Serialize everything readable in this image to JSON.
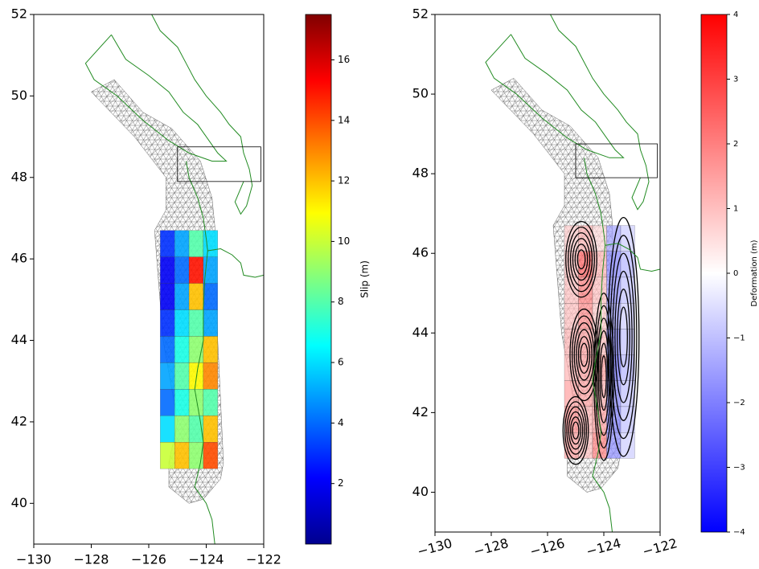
{
  "chart_data": [
    {
      "type": "map",
      "xlim": [
        -130,
        -122
      ],
      "ylim": [
        39,
        52
      ],
      "xticks": [
        {
          "value": -130,
          "label": "−130"
        },
        {
          "value": -128,
          "label": "−128"
        },
        {
          "value": -126,
          "label": "−126"
        },
        {
          "value": -124,
          "label": "−124"
        },
        {
          "value": -122,
          "label": "−122"
        }
      ],
      "yticks": [
        40,
        42,
        44,
        46,
        48,
        50,
        52
      ],
      "box": {
        "xlim": [
          -125,
          -122.1
        ],
        "ylim": [
          47.9,
          48.75
        ]
      },
      "field": {
        "lon": [
          -125.6,
          -125.1,
          -124.6,
          -124.1,
          -123.6
        ],
        "lat": [
          46.7,
          46.05,
          45.4,
          44.75,
          44.1,
          43.45,
          42.8,
          42.15,
          41.5,
          40.85
        ],
        "values": [
          [
            3,
            5,
            8,
            6
          ],
          [
            2,
            4,
            15,
            5
          ],
          [
            2,
            5,
            12,
            4
          ],
          [
            3,
            6,
            8,
            5
          ],
          [
            4,
            7,
            9,
            12
          ],
          [
            5,
            8,
            11,
            13
          ],
          [
            4,
            7,
            9,
            8
          ],
          [
            6,
            9,
            8,
            12
          ],
          [
            10,
            12,
            9,
            14
          ]
        ]
      },
      "colorbar": {
        "label": "Slip (m)",
        "lim": [
          0,
          17.5
        ],
        "ticks": [
          2,
          4,
          6,
          8,
          10,
          12,
          14,
          16
        ],
        "colors": [
          "#00008f",
          "#0000ff",
          "#0080ff",
          "#00ffff",
          "#80ff80",
          "#ffff00",
          "#ff8000",
          "#ff0000",
          "#800000"
        ]
      }
    },
    {
      "type": "map",
      "xlim": [
        -130,
        -122
      ],
      "ylim": [
        39,
        52
      ],
      "xticks": [
        {
          "value": -130,
          "label": "−130"
        },
        {
          "value": -128,
          "label": "−128"
        },
        {
          "value": -126,
          "label": "−126"
        },
        {
          "value": -124,
          "label": "−124"
        },
        {
          "value": -122,
          "label": "−122"
        }
      ],
      "yticks": [
        40,
        42,
        44,
        46,
        48,
        50,
        52
      ],
      "box": {
        "xlim": [
          -125,
          -122.1
        ],
        "ylim": [
          47.9,
          48.75
        ]
      },
      "field": {
        "lon": [
          -125.4,
          -124.9,
          -124.4,
          -123.9,
          -123.4,
          -122.9
        ],
        "lat": [
          46.7,
          46.05,
          45.4,
          44.75,
          44.1,
          43.45,
          42.8,
          42.15,
          41.5,
          40.85
        ],
        "values": [
          [
            0.8,
            1.2,
            0.6,
            -1.5,
            -0.8
          ],
          [
            1,
            2.5,
            1.2,
            -2,
            -1.2
          ],
          [
            1,
            2,
            1,
            -1.8,
            -1
          ],
          [
            1,
            1.8,
            0.8,
            -1.5,
            -0.8
          ],
          [
            1.2,
            1.5,
            1,
            -2,
            -1
          ],
          [
            1.2,
            1.5,
            1.5,
            -2.2,
            -1.2
          ],
          [
            1.5,
            1.5,
            1.2,
            -1.8,
            -1
          ],
          [
            1.8,
            1.2,
            1.5,
            -2,
            -1
          ],
          [
            1.5,
            1,
            2,
            -1.8,
            -0.8
          ]
        ]
      },
      "colorbar": {
        "label": "Deformation (m)",
        "lim": [
          -4,
          4
        ],
        "ticks": [
          {
            "value": -4,
            "label": "−4"
          },
          {
            "value": -3,
            "label": "−3"
          },
          {
            "value": -2,
            "label": "−2"
          },
          {
            "value": -1,
            "label": "−1"
          },
          0,
          1,
          2,
          3,
          4
        ],
        "colors": [
          "#0000ff",
          "#ffffff",
          "#ff0000"
        ]
      }
    }
  ]
}
